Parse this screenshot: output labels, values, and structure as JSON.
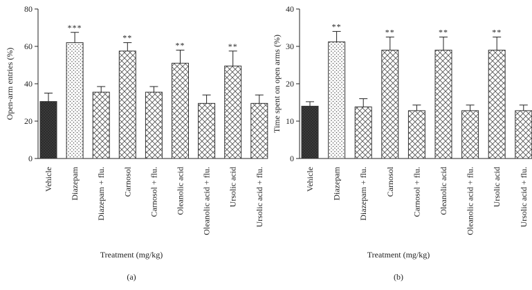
{
  "chart_data": [
    {
      "type": "bar",
      "panel": "(a)",
      "ylabel": "Open-arm entries (%)",
      "xlabel": "Treatment (mg/kg)",
      "ylim": [
        0,
        80
      ],
      "yticks": [
        0,
        20,
        40,
        60,
        80
      ],
      "grid": false,
      "categories": [
        "Vehicle",
        "Diazepam",
        "Diazepam + flu.",
        "Carnosol",
        "Carnosol + flu.",
        "Oleanolic acid",
        "Oleanolic acid + flu.",
        "Ursolic acid",
        "Ursolic acid + flu."
      ],
      "values": [
        30.5,
        62,
        35.5,
        57.5,
        35.5,
        51,
        29.5,
        49.5,
        29.5
      ],
      "errors": [
        4.5,
        5.5,
        3,
        4.5,
        3,
        7,
        4.5,
        8,
        4.5
      ],
      "significance": [
        "",
        "***",
        "",
        "**",
        "",
        "**",
        "",
        "**",
        ""
      ],
      "fills": [
        "solid-dark",
        "dots",
        "crosshatch",
        "crosshatch",
        "crosshatch",
        "crosshatch",
        "crosshatch",
        "crosshatch",
        "crosshatch"
      ]
    },
    {
      "type": "bar",
      "panel": "(b)",
      "ylabel": "Time spent on open arms (%)",
      "xlabel": "Treatment (mg/kg)",
      "ylim": [
        0,
        40
      ],
      "yticks": [
        0,
        10,
        20,
        30,
        40
      ],
      "grid": false,
      "categories": [
        "Vehicle",
        "Diazepam",
        "Diazepam + flu.",
        "Carnosol",
        "Carnosol + flu.",
        "Oleanolic acid",
        "Oleanolic acid + flu.",
        "Ursolic acid",
        "Ursolic acid + flu."
      ],
      "values": [
        14,
        31.2,
        13.8,
        29,
        12.8,
        29,
        12.8,
        29,
        12.8
      ],
      "errors": [
        1.2,
        2.8,
        2.2,
        3.5,
        1.5,
        3.5,
        1.5,
        3.5,
        1.5
      ],
      "significance": [
        "",
        "**",
        "",
        "**",
        "",
        "**",
        "",
        "**",
        ""
      ],
      "fills": [
        "solid-dark",
        "dots",
        "crosshatch",
        "crosshatch",
        "crosshatch",
        "crosshatch",
        "crosshatch",
        "crosshatch",
        "crosshatch"
      ]
    }
  ],
  "colors": {
    "axis": "#222222",
    "bar_outline": "#333333",
    "solid_dark": "#2a2a2a",
    "hatch": "#555555",
    "background": "#ffffff"
  }
}
